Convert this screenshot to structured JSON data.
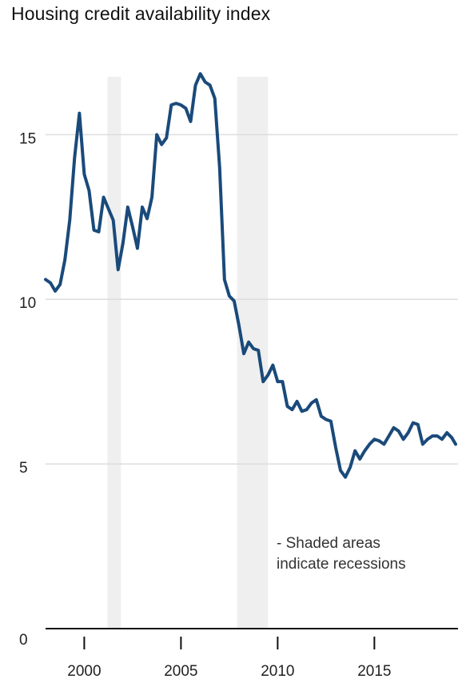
{
  "chart_data": {
    "type": "line",
    "title": "Housing credit availability index",
    "xlabel": "",
    "ylabel": "",
    "xlim": [
      1998,
      2019.2
    ],
    "ylim": [
      0,
      17
    ],
    "x_ticks": [
      {
        "value": 2000,
        "label": "2000"
      },
      {
        "value": 2005,
        "label": "2005"
      },
      {
        "value": 2010,
        "label": "2010"
      },
      {
        "value": 2015,
        "label": "2015"
      }
    ],
    "y_ticks": [
      {
        "value": 0,
        "label": "0"
      },
      {
        "value": 5,
        "label": "5"
      },
      {
        "value": 10,
        "label": "10"
      },
      {
        "value": 15,
        "label": "15"
      }
    ],
    "grid": true,
    "annotation": "- Shaded areas\nindicate recessions",
    "recessions": [
      {
        "start": 2001.2,
        "end": 2001.9
      },
      {
        "start": 2007.9,
        "end": 2009.5
      }
    ],
    "line_color": "#1a4a7a",
    "recession_color": "#efefef",
    "series": [
      {
        "values": [
          [
            1998.0,
            10.6
          ],
          [
            1998.25,
            10.5
          ],
          [
            1998.5,
            10.25
          ],
          [
            1998.75,
            10.45
          ],
          [
            1999.0,
            11.2
          ],
          [
            1999.25,
            12.4
          ],
          [
            1999.5,
            14.3
          ],
          [
            1999.75,
            15.65
          ],
          [
            2000.0,
            13.8
          ],
          [
            2000.25,
            13.3
          ],
          [
            2000.5,
            12.1
          ],
          [
            2000.75,
            12.05
          ],
          [
            2001.0,
            13.1
          ],
          [
            2001.25,
            12.75
          ],
          [
            2001.5,
            12.4
          ],
          [
            2001.75,
            10.9
          ],
          [
            2002.0,
            11.7
          ],
          [
            2002.25,
            12.8
          ],
          [
            2002.5,
            12.2
          ],
          [
            2002.75,
            11.55
          ],
          [
            2003.0,
            12.8
          ],
          [
            2003.25,
            12.45
          ],
          [
            2003.5,
            13.1
          ],
          [
            2003.75,
            15.0
          ],
          [
            2004.0,
            14.7
          ],
          [
            2004.25,
            14.9
          ],
          [
            2004.5,
            15.9
          ],
          [
            2004.75,
            15.95
          ],
          [
            2005.0,
            15.9
          ],
          [
            2005.25,
            15.8
          ],
          [
            2005.5,
            15.4
          ],
          [
            2005.75,
            16.5
          ],
          [
            2006.0,
            16.85
          ],
          [
            2006.25,
            16.6
          ],
          [
            2006.5,
            16.5
          ],
          [
            2006.75,
            16.1
          ],
          [
            2007.0,
            14.0
          ],
          [
            2007.25,
            10.6
          ],
          [
            2007.5,
            10.1
          ],
          [
            2007.75,
            9.95
          ],
          [
            2008.0,
            9.2
          ],
          [
            2008.25,
            8.35
          ],
          [
            2008.5,
            8.7
          ],
          [
            2008.75,
            8.5
          ],
          [
            2009.0,
            8.45
          ],
          [
            2009.25,
            7.5
          ],
          [
            2009.5,
            7.7
          ],
          [
            2009.75,
            8.0
          ],
          [
            2010.0,
            7.5
          ],
          [
            2010.25,
            7.5
          ],
          [
            2010.5,
            6.75
          ],
          [
            2010.75,
            6.65
          ],
          [
            2011.0,
            6.9
          ],
          [
            2011.25,
            6.6
          ],
          [
            2011.5,
            6.65
          ],
          [
            2011.75,
            6.85
          ],
          [
            2012.0,
            6.95
          ],
          [
            2012.25,
            6.45
          ],
          [
            2012.5,
            6.35
          ],
          [
            2012.75,
            6.3
          ],
          [
            2013.0,
            5.5
          ],
          [
            2013.25,
            4.8
          ],
          [
            2013.5,
            4.6
          ],
          [
            2013.75,
            4.9
          ],
          [
            2014.0,
            5.4
          ],
          [
            2014.25,
            5.15
          ],
          [
            2014.5,
            5.4
          ],
          [
            2014.75,
            5.6
          ],
          [
            2015.0,
            5.75
          ],
          [
            2015.25,
            5.7
          ],
          [
            2015.5,
            5.6
          ],
          [
            2015.75,
            5.85
          ],
          [
            2016.0,
            6.1
          ],
          [
            2016.25,
            6.0
          ],
          [
            2016.5,
            5.75
          ],
          [
            2016.75,
            5.95
          ],
          [
            2017.0,
            6.25
          ],
          [
            2017.25,
            6.2
          ],
          [
            2017.5,
            5.6
          ],
          [
            2017.75,
            5.75
          ],
          [
            2018.0,
            5.85
          ],
          [
            2018.25,
            5.85
          ],
          [
            2018.5,
            5.75
          ],
          [
            2018.75,
            5.95
          ],
          [
            2019.0,
            5.8
          ],
          [
            2019.2,
            5.6
          ]
        ]
      }
    ]
  }
}
